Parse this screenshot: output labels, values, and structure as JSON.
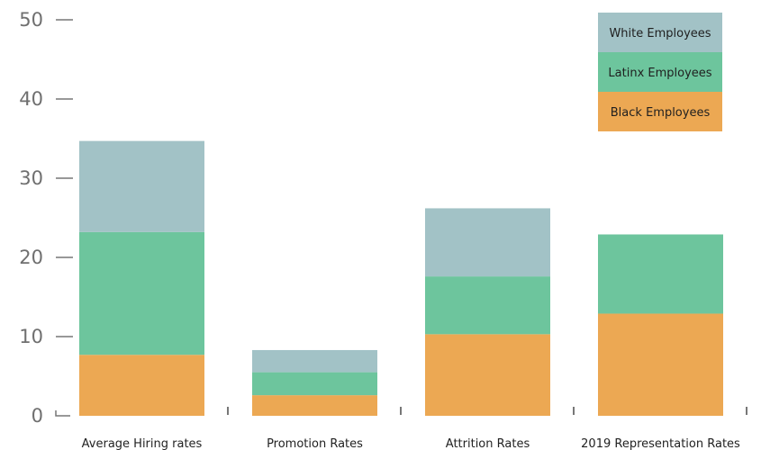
{
  "chart_data": {
    "type": "bar",
    "stacked": true,
    "categories": [
      "Average Hiring rates",
      "Promotion Rates",
      "Attrition Rates",
      "2019 Representation Rates"
    ],
    "series": [
      {
        "name": "Black Employees",
        "color": "#eca853",
        "values": [
          7.7,
          2.6,
          10.3,
          12.9
        ]
      },
      {
        "name": "Latinx Employees",
        "color": "#6dc59d",
        "values": [
          15.5,
          2.9,
          7.3,
          10.0
        ]
      },
      {
        "name": "White Employees",
        "color": "#a2c2c6",
        "values": [
          11.5,
          2.8,
          8.6,
          0
        ]
      }
    ],
    "yticks": [
      "0",
      "10",
      "20",
      "30",
      "40",
      "50"
    ],
    "ylim": [
      0,
      50
    ],
    "legend_position": "top-right",
    "legend_order": [
      "White Employees",
      "Latinx Employees",
      "Black Employees"
    ],
    "grid": false
  }
}
